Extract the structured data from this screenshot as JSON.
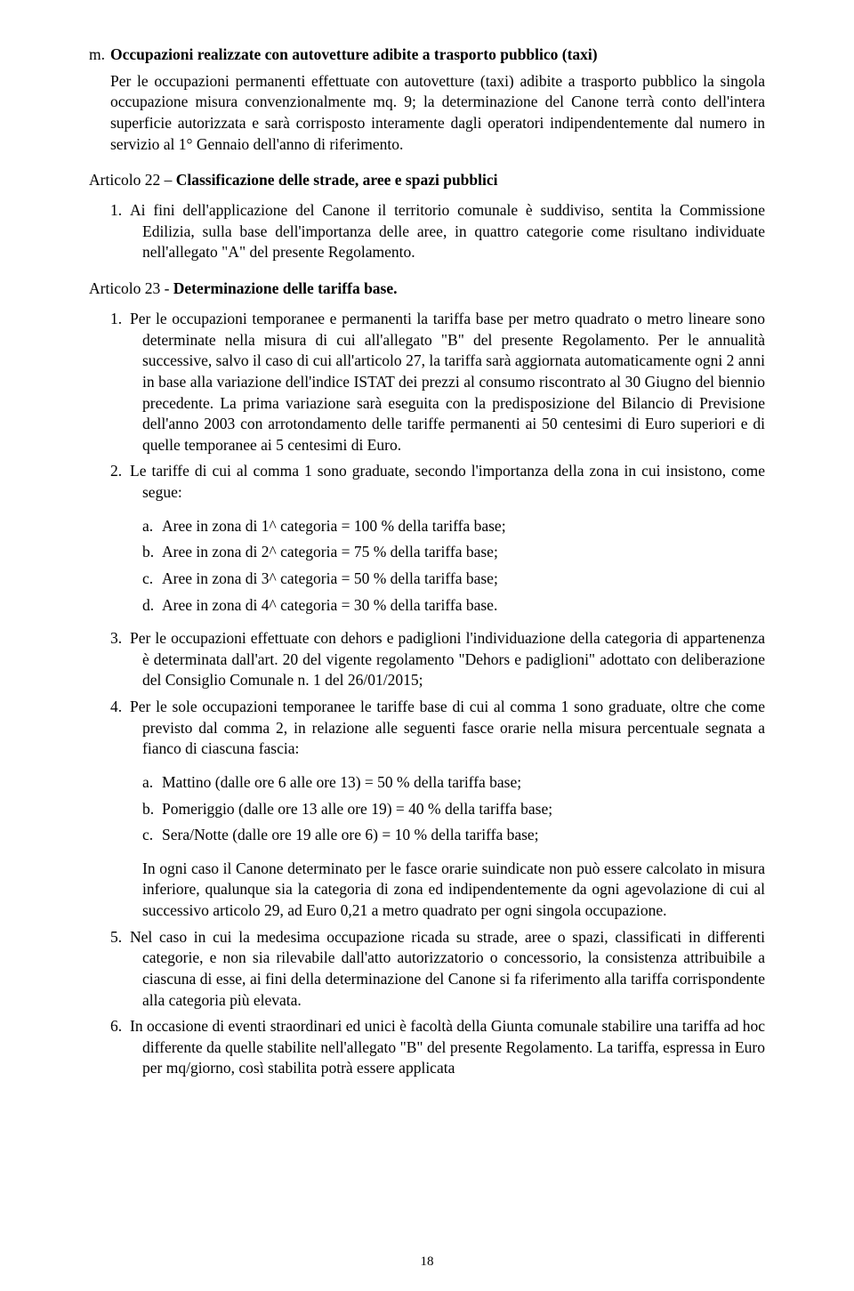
{
  "section_m": {
    "letter": "m.",
    "title": "Occupazioni realizzate con autovetture adibite a trasporto pubblico (taxi)",
    "body": "Per le occupazioni permanenti effettuate con autovetture (taxi) adibite a trasporto pubblico la singola occupazione misura convenzionalmente mq. 9; la determinazione del Canone terrà conto dell'intera superficie autorizzata e sarà corrisposto interamente dagli operatori indipendentemente dal numero in servizio al 1° Gennaio dell'anno di riferimento."
  },
  "art22": {
    "prefix": "Articolo 22 – ",
    "title": "Classificazione delle strade, aree e spazi pubblici",
    "items": [
      {
        "num": "1.",
        "text": "Ai fini dell'applicazione del Canone il territorio comunale è suddiviso, sentita la Commissione Edilizia, sulla base dell'importanza delle aree, in quattro categorie come risultano individuate nell'allegato \"A\" del presente Regolamento."
      }
    ]
  },
  "art23": {
    "prefix": "Articolo 23 - ",
    "title": "Determinazione delle tariffa base.",
    "items": [
      {
        "num": "1.",
        "text": "Per le occupazioni temporanee e permanenti la tariffa base per metro quadrato o metro lineare sono determinate nella misura di cui all'allegato \"B\" del presente Regolamento. Per le annualità successive, salvo il caso di cui all'articolo 27, la tariffa sarà aggiornata automaticamente ogni 2 anni in base alla variazione dell'indice ISTAT dei prezzi al consumo riscontrato al 30 Giugno del biennio precedente. La prima variazione sarà eseguita con la predisposizione del Bilancio di Previsione dell'anno 2003 con arrotondamento delle tariffe permanenti ai 50 centesimi di Euro superiori e di quelle temporanee ai 5 centesimi di Euro."
      },
      {
        "num": "2.",
        "text": "Le tariffe di cui al comma 1 sono graduate, secondo l'importanza della zona in cui insistono, come segue:"
      }
    ],
    "sub2": [
      {
        "letter": "a.",
        "text": "Aree in zona di 1^ categoria = 100 % della tariffa base;"
      },
      {
        "letter": "b.",
        "text": "Aree in zona di 2^ categoria = 75 % della tariffa base;"
      },
      {
        "letter": "c.",
        "text": "Aree in zona di 3^ categoria = 50 % della tariffa base;"
      },
      {
        "letter": "d.",
        "text": "Aree in zona di 4^ categoria = 30 % della tariffa base."
      }
    ],
    "items_b": [
      {
        "num": "3.",
        "text": "Per le occupazioni effettuate con dehors e padiglioni l'individuazione della categoria di appartenenza è determinata dall'art. 20 del vigente regolamento \"Dehors e padiglioni\" adottato con deliberazione del Consiglio Comunale n. 1 del 26/01/2015;"
      },
      {
        "num": "4.",
        "text": "Per le sole occupazioni temporanee le tariffe base di cui al comma 1 sono graduate, oltre che come previsto dal comma 2, in relazione alle seguenti fasce orarie nella misura percentuale segnata a fianco di ciascuna fascia:"
      }
    ],
    "sub4": [
      {
        "letter": "a.",
        "text": "Mattino (dalle ore 6 alle ore 13) = 50 % della tariffa base;"
      },
      {
        "letter": "b.",
        "text": "Pomeriggio (dalle ore 13 alle ore 19) = 40 % della tariffa base;"
      },
      {
        "letter": "c.",
        "text": "Sera/Notte (dalle ore 19 alle ore 6) = 10 % della tariffa base;"
      }
    ],
    "cont4": "In ogni caso il Canone determinato per le fasce orarie suindicate non può essere calcolato in misura inferiore, qualunque sia la categoria di zona ed indipendentemente da ogni agevolazione di cui al successivo articolo 29, ad Euro 0,21 a metro quadrato per ogni singola occupazione.",
    "items_c": [
      {
        "num": "5.",
        "text": "Nel caso in cui la medesima occupazione ricada su strade, aree o spazi, classificati in differenti categorie, e non sia rilevabile dall'atto autorizzatorio o concessorio, la consistenza attribuibile a ciascuna di esse, ai fini della determinazione del Canone si fa riferimento alla tariffa corrispondente alla categoria più elevata."
      },
      {
        "num": "6.",
        "text": "In occasione di eventi straordinari ed unici è facoltà della Giunta comunale stabilire una tariffa ad hoc differente da quelle stabilite nell'allegato \"B\" del presente Regolamento. La tariffa, espressa in Euro per mq/giorno, così stabilita potrà essere applicata"
      }
    ]
  },
  "page_number": "18"
}
